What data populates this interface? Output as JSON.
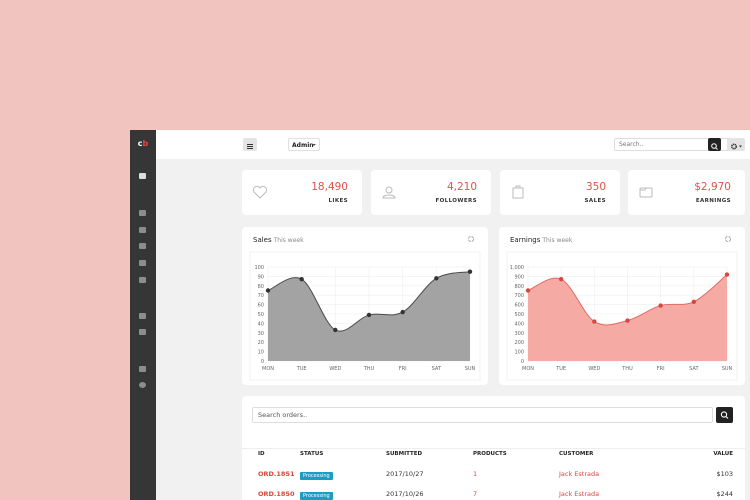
{
  "brand": [
    "c",
    "b"
  ],
  "topbar": {
    "menu_label": "Admin",
    "search_placeholder": "Search.."
  },
  "stats": [
    {
      "value": "18,490",
      "label": "LIKES"
    },
    {
      "value": "4,210",
      "label": "FOLLOWERS"
    },
    {
      "value": "350",
      "label": "SALES"
    },
    {
      "value": "$2,970",
      "label": "EARNINGS"
    }
  ],
  "chart_data": [
    {
      "type": "area",
      "title": "Sales",
      "subtitle": "This week",
      "categories": [
        "MON",
        "TUE",
        "WED",
        "THU",
        "FRI",
        "SAT",
        "SUN"
      ],
      "values": [
        75,
        87,
        33,
        49,
        52,
        88,
        95
      ],
      "color": "#a3a3a3",
      "line_color": "#4a4a4a",
      "point_color": "#333333",
      "ylim": [
        0,
        100
      ],
      "yticks": [
        0,
        10,
        20,
        30,
        40,
        50,
        60,
        70,
        80,
        90,
        100
      ],
      "grid": true
    },
    {
      "type": "area",
      "title": "Earnings",
      "subtitle": "This week",
      "categories": [
        "MON",
        "TUE",
        "WED",
        "THU",
        "FRI",
        "SAT",
        "SUN"
      ],
      "values": [
        750,
        870,
        420,
        430,
        590,
        630,
        920
      ],
      "color": "#f5aba4",
      "line_color": "#e36b63",
      "point_color": "#d9463e",
      "ylim": [
        0,
        1000
      ],
      "yticks": [
        0,
        100,
        200,
        300,
        400,
        500,
        600,
        700,
        800,
        900,
        {
          "value": 1000,
          "label": "1,000"
        }
      ],
      "grid": true
    }
  ],
  "orders": {
    "search_placeholder": "Search orders..",
    "columns": [
      "ID",
      "STATUS",
      "SUBMITTED",
      "PRODUCTS",
      "CUSTOMER",
      "VALUE"
    ],
    "rows": [
      [
        "ORD.1851",
        "Processing",
        "2017/10/27",
        "1",
        "Jack Estrada",
        "$103"
      ],
      [
        "ORD.1850",
        "Processing",
        "2017/10/26",
        "7",
        "Jack Estrada",
        "$244"
      ]
    ]
  }
}
